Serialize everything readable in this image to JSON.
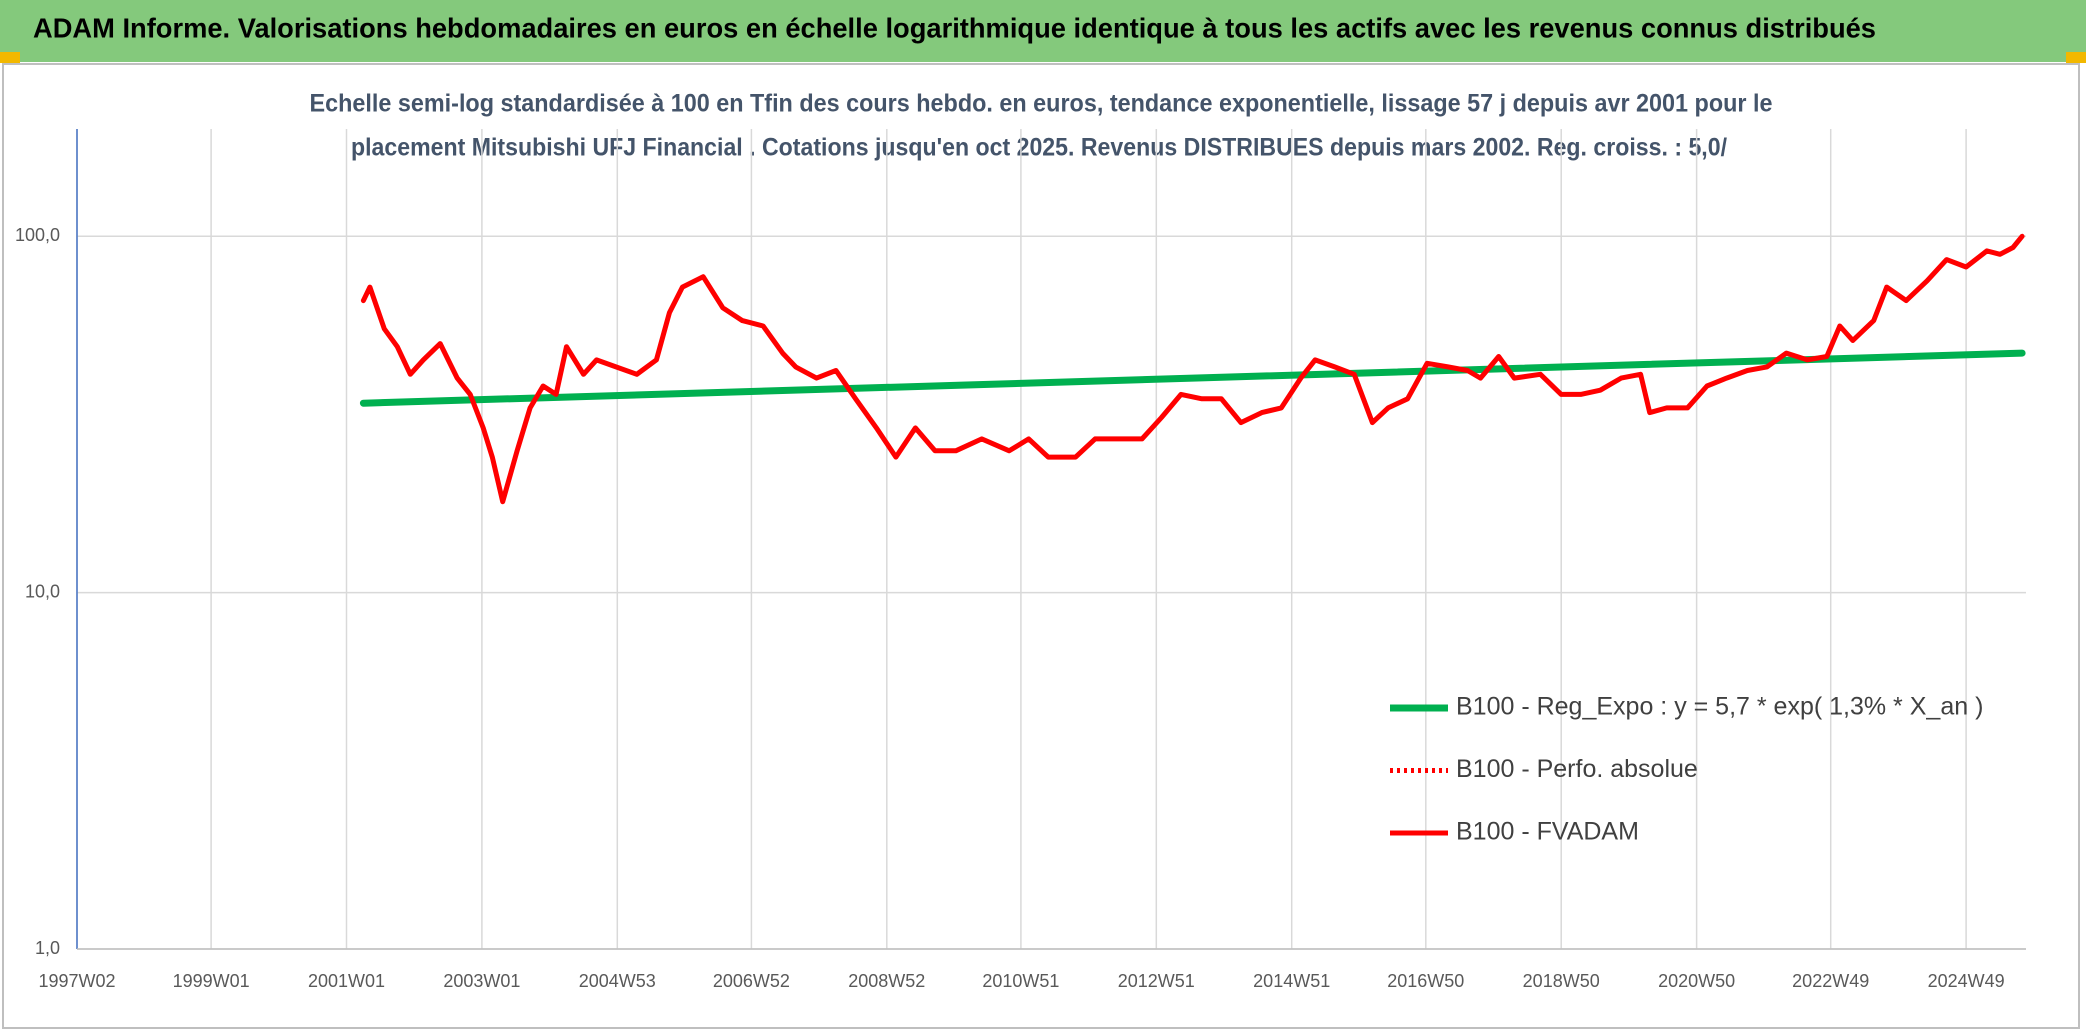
{
  "chart_data": {
    "type": "line",
    "title": "ADAM Informe. Valorisations hebdomadaires en euros en échelle logarithmique identique à tous les actifs avec les revenus connus distribués",
    "subtitle": [
      "Echelle semi-log standardisée à 100 en Tfin des cours hebdo. en euros, tendance exponentielle, lissage 57 j depuis avr 2001 pour le",
      "placement Mitsubishi UFJ Financial . Cotations jusqu'en oct 2025. Revenus DISTRIBUES depuis mars 2002. Reg. croiss. : 5,0/"
    ],
    "log_y": true,
    "grid": true,
    "legend": "lower right",
    "ylim": [
      1,
      200
    ],
    "yticks": [
      {
        "value": 1,
        "label": "1,0"
      },
      {
        "value": 10,
        "label": "10,0"
      },
      {
        "value": 100,
        "label": "100,0"
      }
    ],
    "xlim": [
      "1997W02",
      "2025W43"
    ],
    "xticks": [
      "1997W02",
      "1999W01",
      "2001W01",
      "2003W01",
      "2004W53",
      "2006W52",
      "2008W52",
      "2010W51",
      "2012W51",
      "2014W51",
      "2016W50",
      "2018W50",
      "2020W50",
      "2022W49",
      "2024W49"
    ],
    "series": [
      {
        "name": "B100 - Reg_Expo : y = 5,7 * exp( 1,3% *  X_an )",
        "color": "#00b050",
        "style": "solid",
        "x": [
          "2001W14",
          "2025W40"
        ],
        "values": [
          34,
          47
        ]
      },
      {
        "name": "B100 - Perfo. absolue",
        "color": "#ff0000",
        "style": "dotted",
        "x": [],
        "values": []
      },
      {
        "name": "B100 - FVADAM",
        "color": "#ff0000",
        "style": "solid",
        "x": [
          "2001W14",
          "2001W19",
          "2001W30",
          "2001W40",
          "2001W50",
          "2002W08",
          "2002W21",
          "2002W34",
          "2002W44",
          "2003W02",
          "2003W09",
          "2003W17",
          "2003W28",
          "2003W38",
          "2003W48",
          "2004W06",
          "2004W14",
          "2004W27",
          "2004W37",
          "2004W52",
          "2005W16",
          "2005W31",
          "2005W41",
          "2005W51",
          "2006W15",
          "2006W30",
          "2006W45",
          "2007W09",
          "2007W24",
          "2007W34",
          "2007W50",
          "2008W13",
          "2008W28",
          "2008W44",
          "2009W07",
          "2009W22",
          "2009W37",
          "2010W01",
          "2010W21",
          "2010W42",
          "2011W05",
          "2011W20",
          "2011W41",
          "2012W04",
          "2012W19",
          "2012W40",
          "2013W03",
          "2013W18",
          "2013W34",
          "2013W49",
          "2014W12",
          "2014W28",
          "2014W43",
          "2015W06",
          "2015W17",
          "2015W32",
          "2015W47",
          "2016W09",
          "2016W21",
          "2016W36",
          "2016W51",
          "2017W15",
          "2017W30",
          "2017W40",
          "2018W02",
          "2018W14",
          "2018W34",
          "2018W50",
          "2019W13",
          "2019W28",
          "2019W44",
          "2020W07",
          "2020W14",
          "2020W27",
          "2020W43",
          "2021W06",
          "2021W21",
          "2021W37",
          "2021W52",
          "2022W15",
          "2022W31",
          "2022W46",
          "2023W04",
          "2023W14",
          "2023W30",
          "2023W40",
          "2024W03",
          "2024W19",
          "2024W34",
          "2024W49",
          "2025W13",
          "2025W23",
          "2025W33",
          "2025W40"
        ],
        "values": [
          66,
          72,
          55,
          49,
          41,
          45,
          50,
          40,
          36,
          29,
          24,
          18,
          25,
          33,
          38,
          36,
          49,
          41,
          45,
          43,
          41,
          45,
          61,
          72,
          77,
          63,
          58,
          56,
          47,
          43,
          40,
          42,
          35,
          29,
          24,
          29,
          25,
          25,
          27,
          25,
          27,
          24,
          24,
          27,
          27,
          27,
          31,
          36,
          35,
          35,
          30,
          32,
          33,
          40,
          45,
          43,
          41,
          30,
          33,
          35,
          44,
          43,
          42,
          40,
          46,
          40,
          41,
          36,
          36,
          37,
          40,
          41,
          32,
          33,
          33,
          38,
          40,
          42,
          43,
          47,
          45,
          46,
          56,
          51,
          58,
          72,
          66,
          75,
          86,
          82,
          91,
          89,
          93,
          100
        ]
      }
    ]
  }
}
